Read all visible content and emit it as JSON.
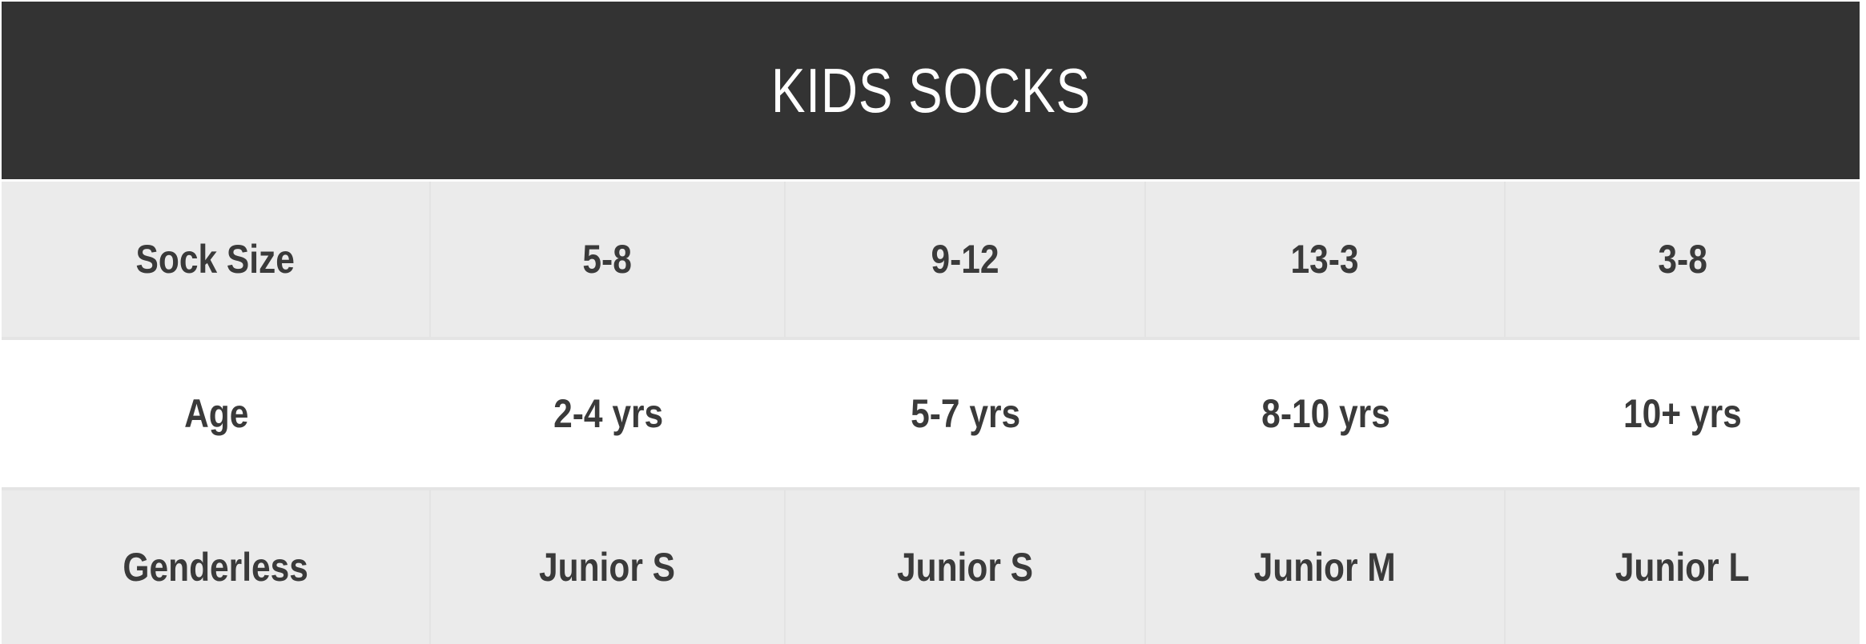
{
  "title": "KIDS SOCKS",
  "colors": {
    "header_bg": "#333333",
    "header_text": "#ffffff",
    "row_alt_bg": "#ebebeb",
    "row_bg": "#ffffff",
    "text": "#3a3a3a"
  },
  "rows": [
    {
      "label": "Sock Size",
      "values": [
        "5-8",
        "9-12",
        "13-3",
        "3-8"
      ]
    },
    {
      "label": "Age",
      "values": [
        "2-4 yrs",
        "5-7 yrs",
        "8-10 yrs",
        "10+ yrs"
      ]
    },
    {
      "label": "Genderless",
      "values": [
        "Junior S",
        "Junior S",
        "Junior M",
        "Junior L"
      ]
    }
  ]
}
